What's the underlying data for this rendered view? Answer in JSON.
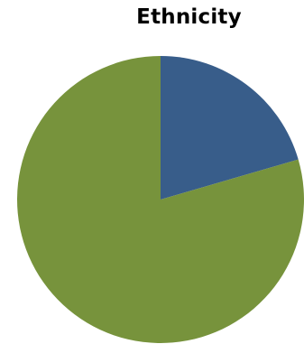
{
  "chart_data": {
    "type": "pie",
    "title": "Ethnicity",
    "values": [
      20.5,
      79.5
    ],
    "colors": [
      "#385d8a",
      "#77933c"
    ],
    "start_angle_deg": 0,
    "direction": "clockwise",
    "legend": "none"
  }
}
